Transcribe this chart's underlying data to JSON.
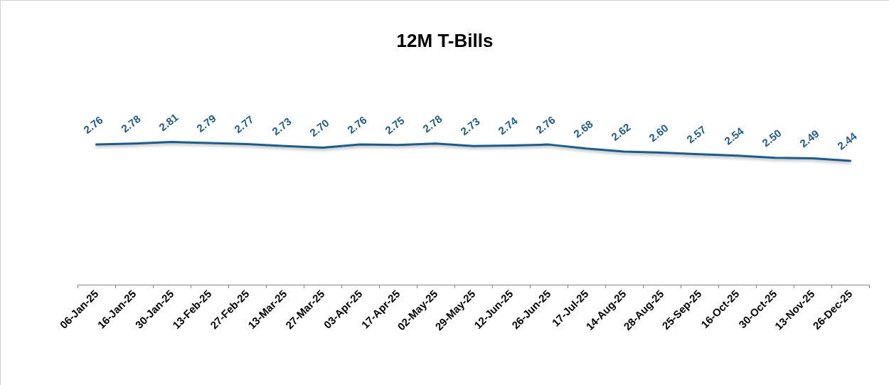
{
  "chart_data": {
    "type": "line",
    "title": "12M T-Bills",
    "categories": [
      "06-Jan-25",
      "16-Jan-25",
      "30-Jan-25",
      "13-Feb-25",
      "27-Feb-25",
      "13-Mar-25",
      "27-Mar-25",
      "03-Apr-25",
      "17-Apr-25",
      "02-May-25",
      "29-May-25",
      "12-Jun-25",
      "26-Jun-25",
      "17-Jul-25",
      "14-Aug-25",
      "28-Aug-25",
      "25-Sep-25",
      "16-Oct-25",
      "30-Oct-25",
      "13-Nov-25",
      "26-Dec-25"
    ],
    "series": [
      {
        "color": "#1f5c8b",
        "values": [
          2.76,
          2.78,
          2.81,
          2.79,
          2.77,
          2.73,
          2.7,
          2.76,
          2.75,
          2.78,
          2.73,
          2.74,
          2.76,
          2.68,
          2.62,
          2.6,
          2.57,
          2.54,
          2.5,
          2.49,
          2.44
        ],
        "value_labels": [
          "2.76",
          "2.78",
          "2.81",
          "2.79",
          "2.77",
          "2.73",
          "2.70",
          "2.76",
          "2.75",
          "2.78",
          "2.73",
          "2.74",
          "2.76",
          "2.68",
          "2.62",
          "2.60",
          "2.57",
          "2.54",
          "2.50",
          "2.49",
          "2.44"
        ]
      }
    ],
    "tick_labels": "x",
    "grid": false,
    "marker": "none",
    "line_style": "solid"
  }
}
